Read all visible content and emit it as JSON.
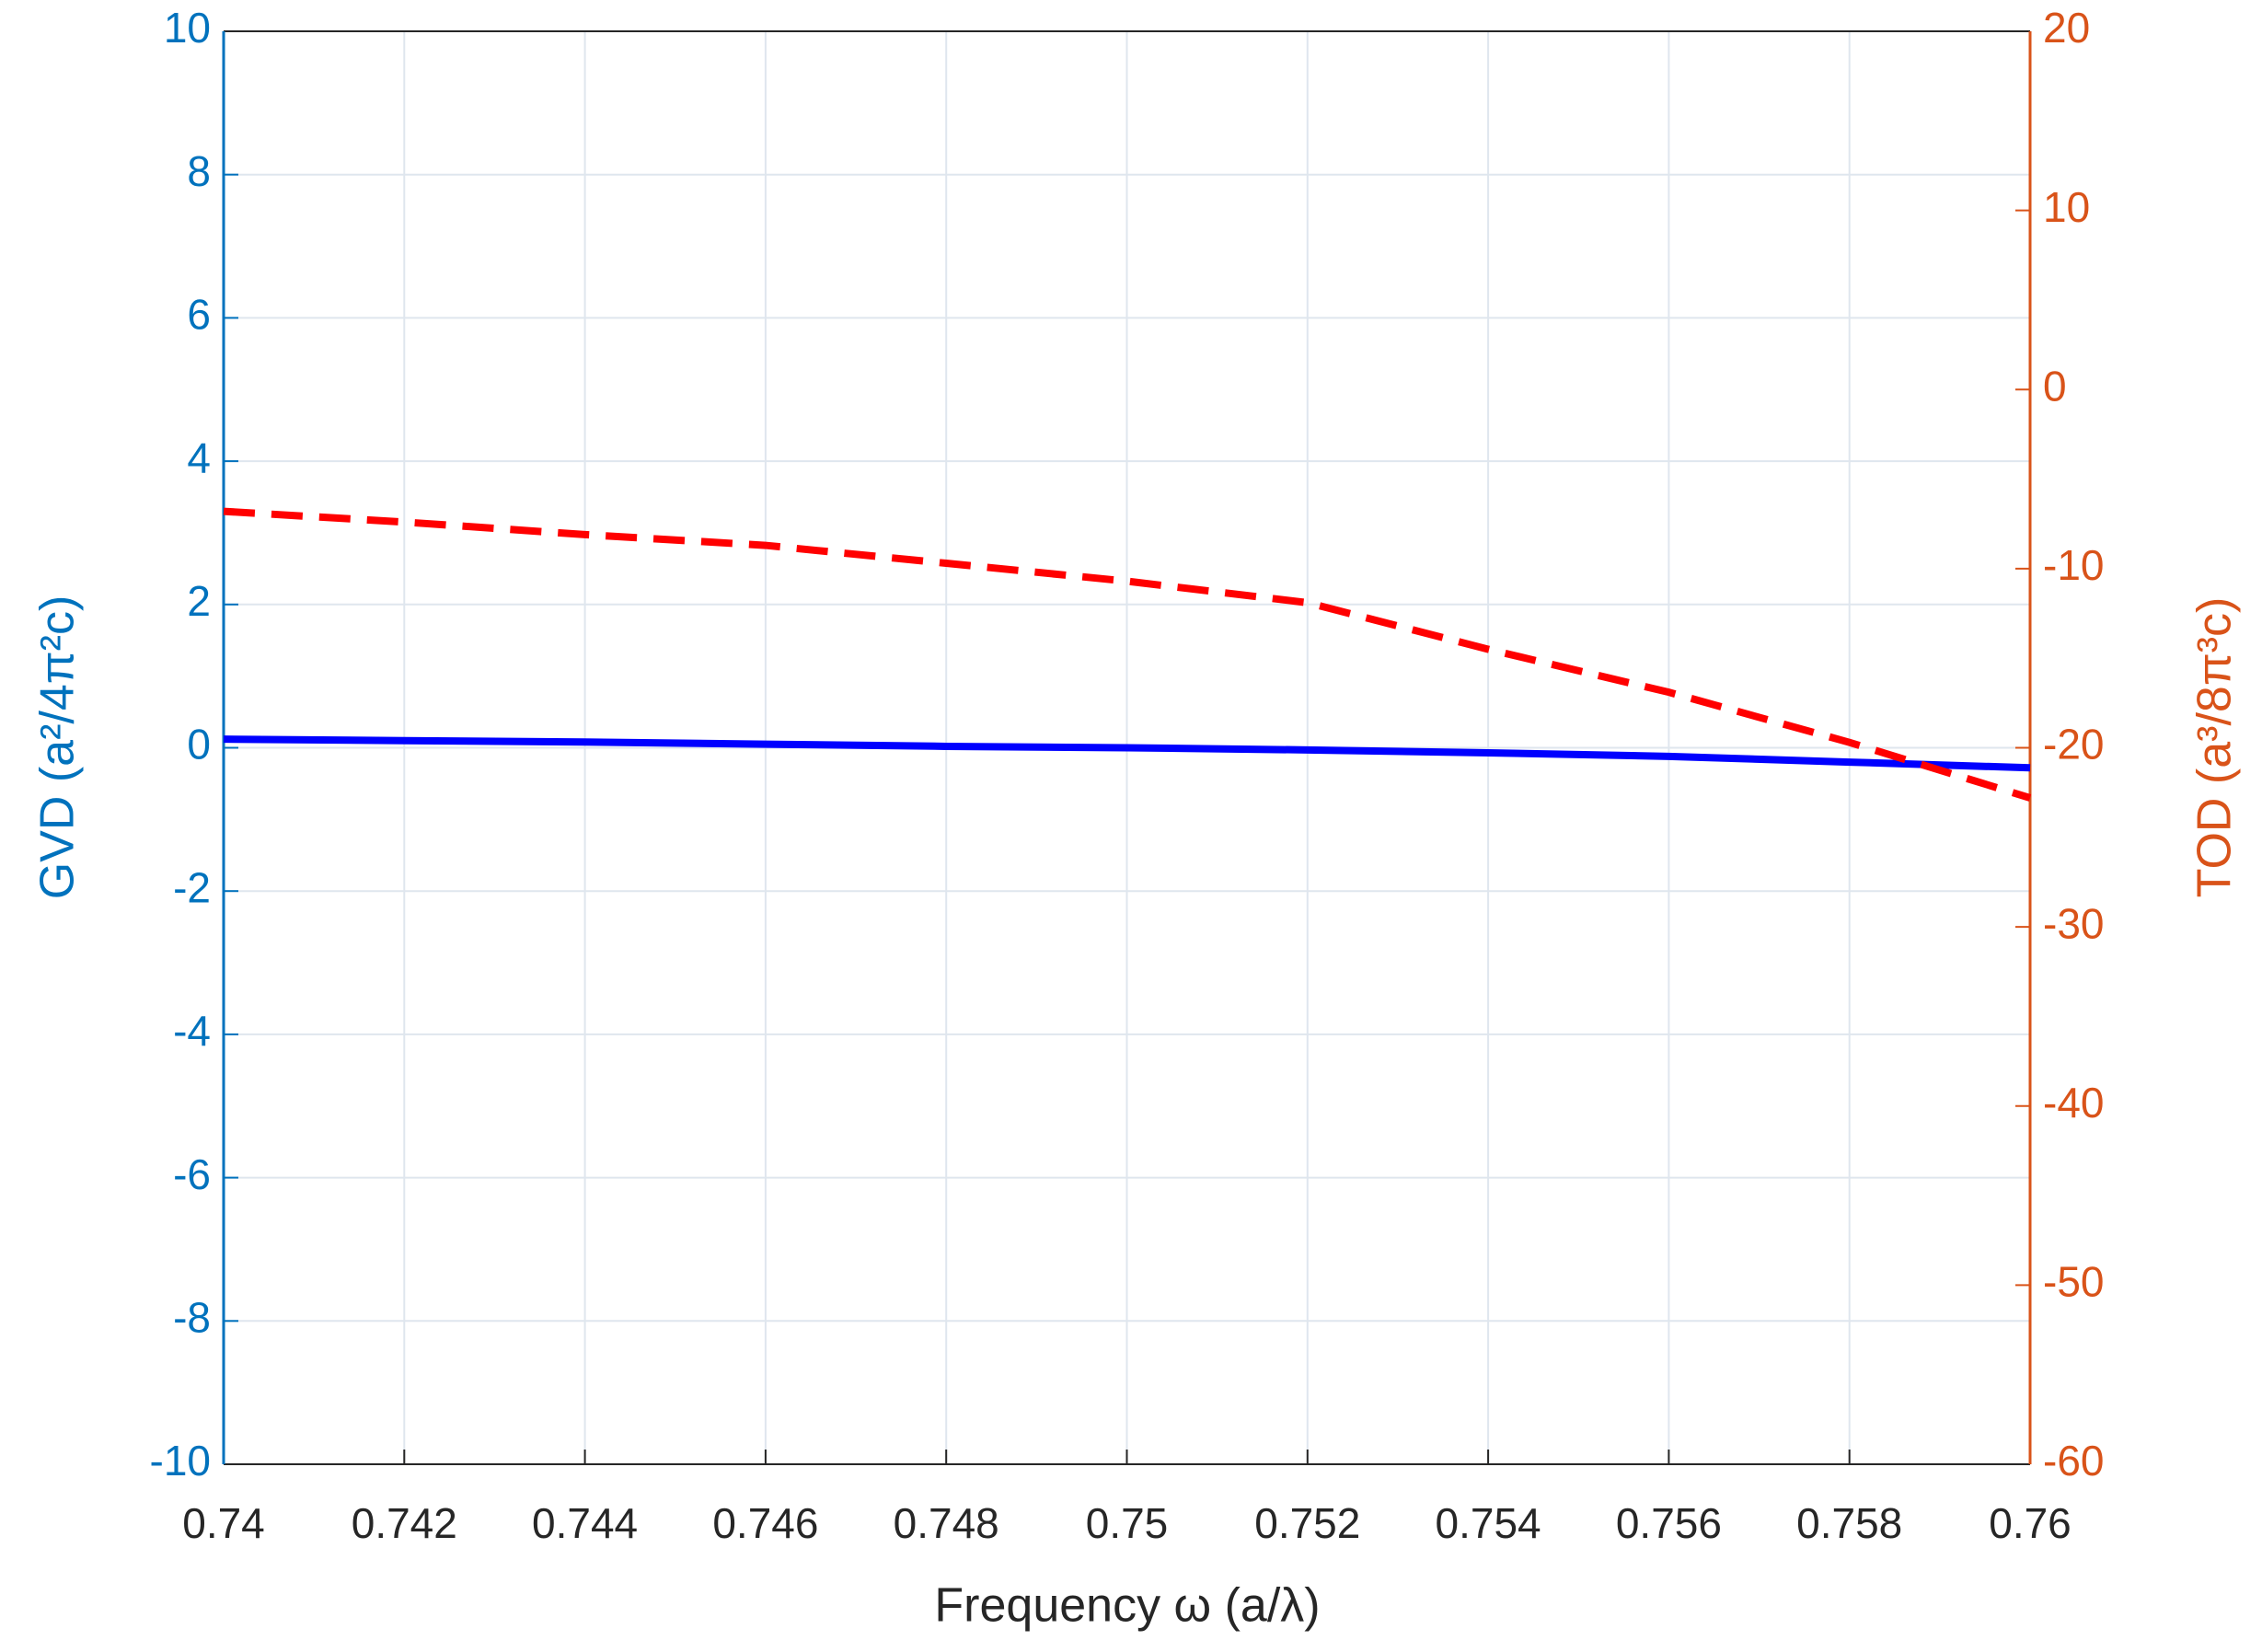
{
  "chart_data": {
    "type": "line",
    "xlabel": "Frequency ω (a/λ)",
    "ylabel": "GVD (a²/4π²c)",
    "y2label": "TOD (a³/8π³c)",
    "x": [
      0.74,
      0.742,
      0.744,
      0.746,
      0.748,
      0.75,
      0.752,
      0.754,
      0.756,
      0.758,
      0.76
    ],
    "series": [
      {
        "color": "#0000ff",
        "style": "solid",
        "axis": "y",
        "values": [
          0.12,
          0.1,
          0.08,
          0.05,
          0.02,
          0,
          -0.03,
          -0.07,
          -0.12,
          -0.2,
          -0.28
        ]
      },
      {
        "color": "#ff0000",
        "style": "dashed",
        "axis": "y2",
        "values": [
          -6.8,
          -7.4,
          -8.1,
          -8.7,
          -9.7,
          -10.7,
          -11.9,
          -14.5,
          -16.9,
          -19.7,
          -22.8
        ]
      }
    ],
    "xlim": [
      0.74,
      0.76
    ],
    "xticks": [
      0.74,
      0.742,
      0.744,
      0.746,
      0.748,
      0.75,
      0.752,
      0.754,
      0.756,
      0.758,
      0.76
    ],
    "ylim": [
      -10,
      10
    ],
    "yticks": [
      -10,
      -8,
      -6,
      -4,
      -2,
      0,
      2,
      4,
      6,
      8,
      10
    ],
    "y2lim": [
      -60,
      20
    ],
    "y2ticks": [
      -60,
      -50,
      -40,
      -30,
      -20,
      -10,
      0,
      10,
      20
    ],
    "ycolor": "#0072bd",
    "y2color": "#d95319",
    "grid": true
  }
}
